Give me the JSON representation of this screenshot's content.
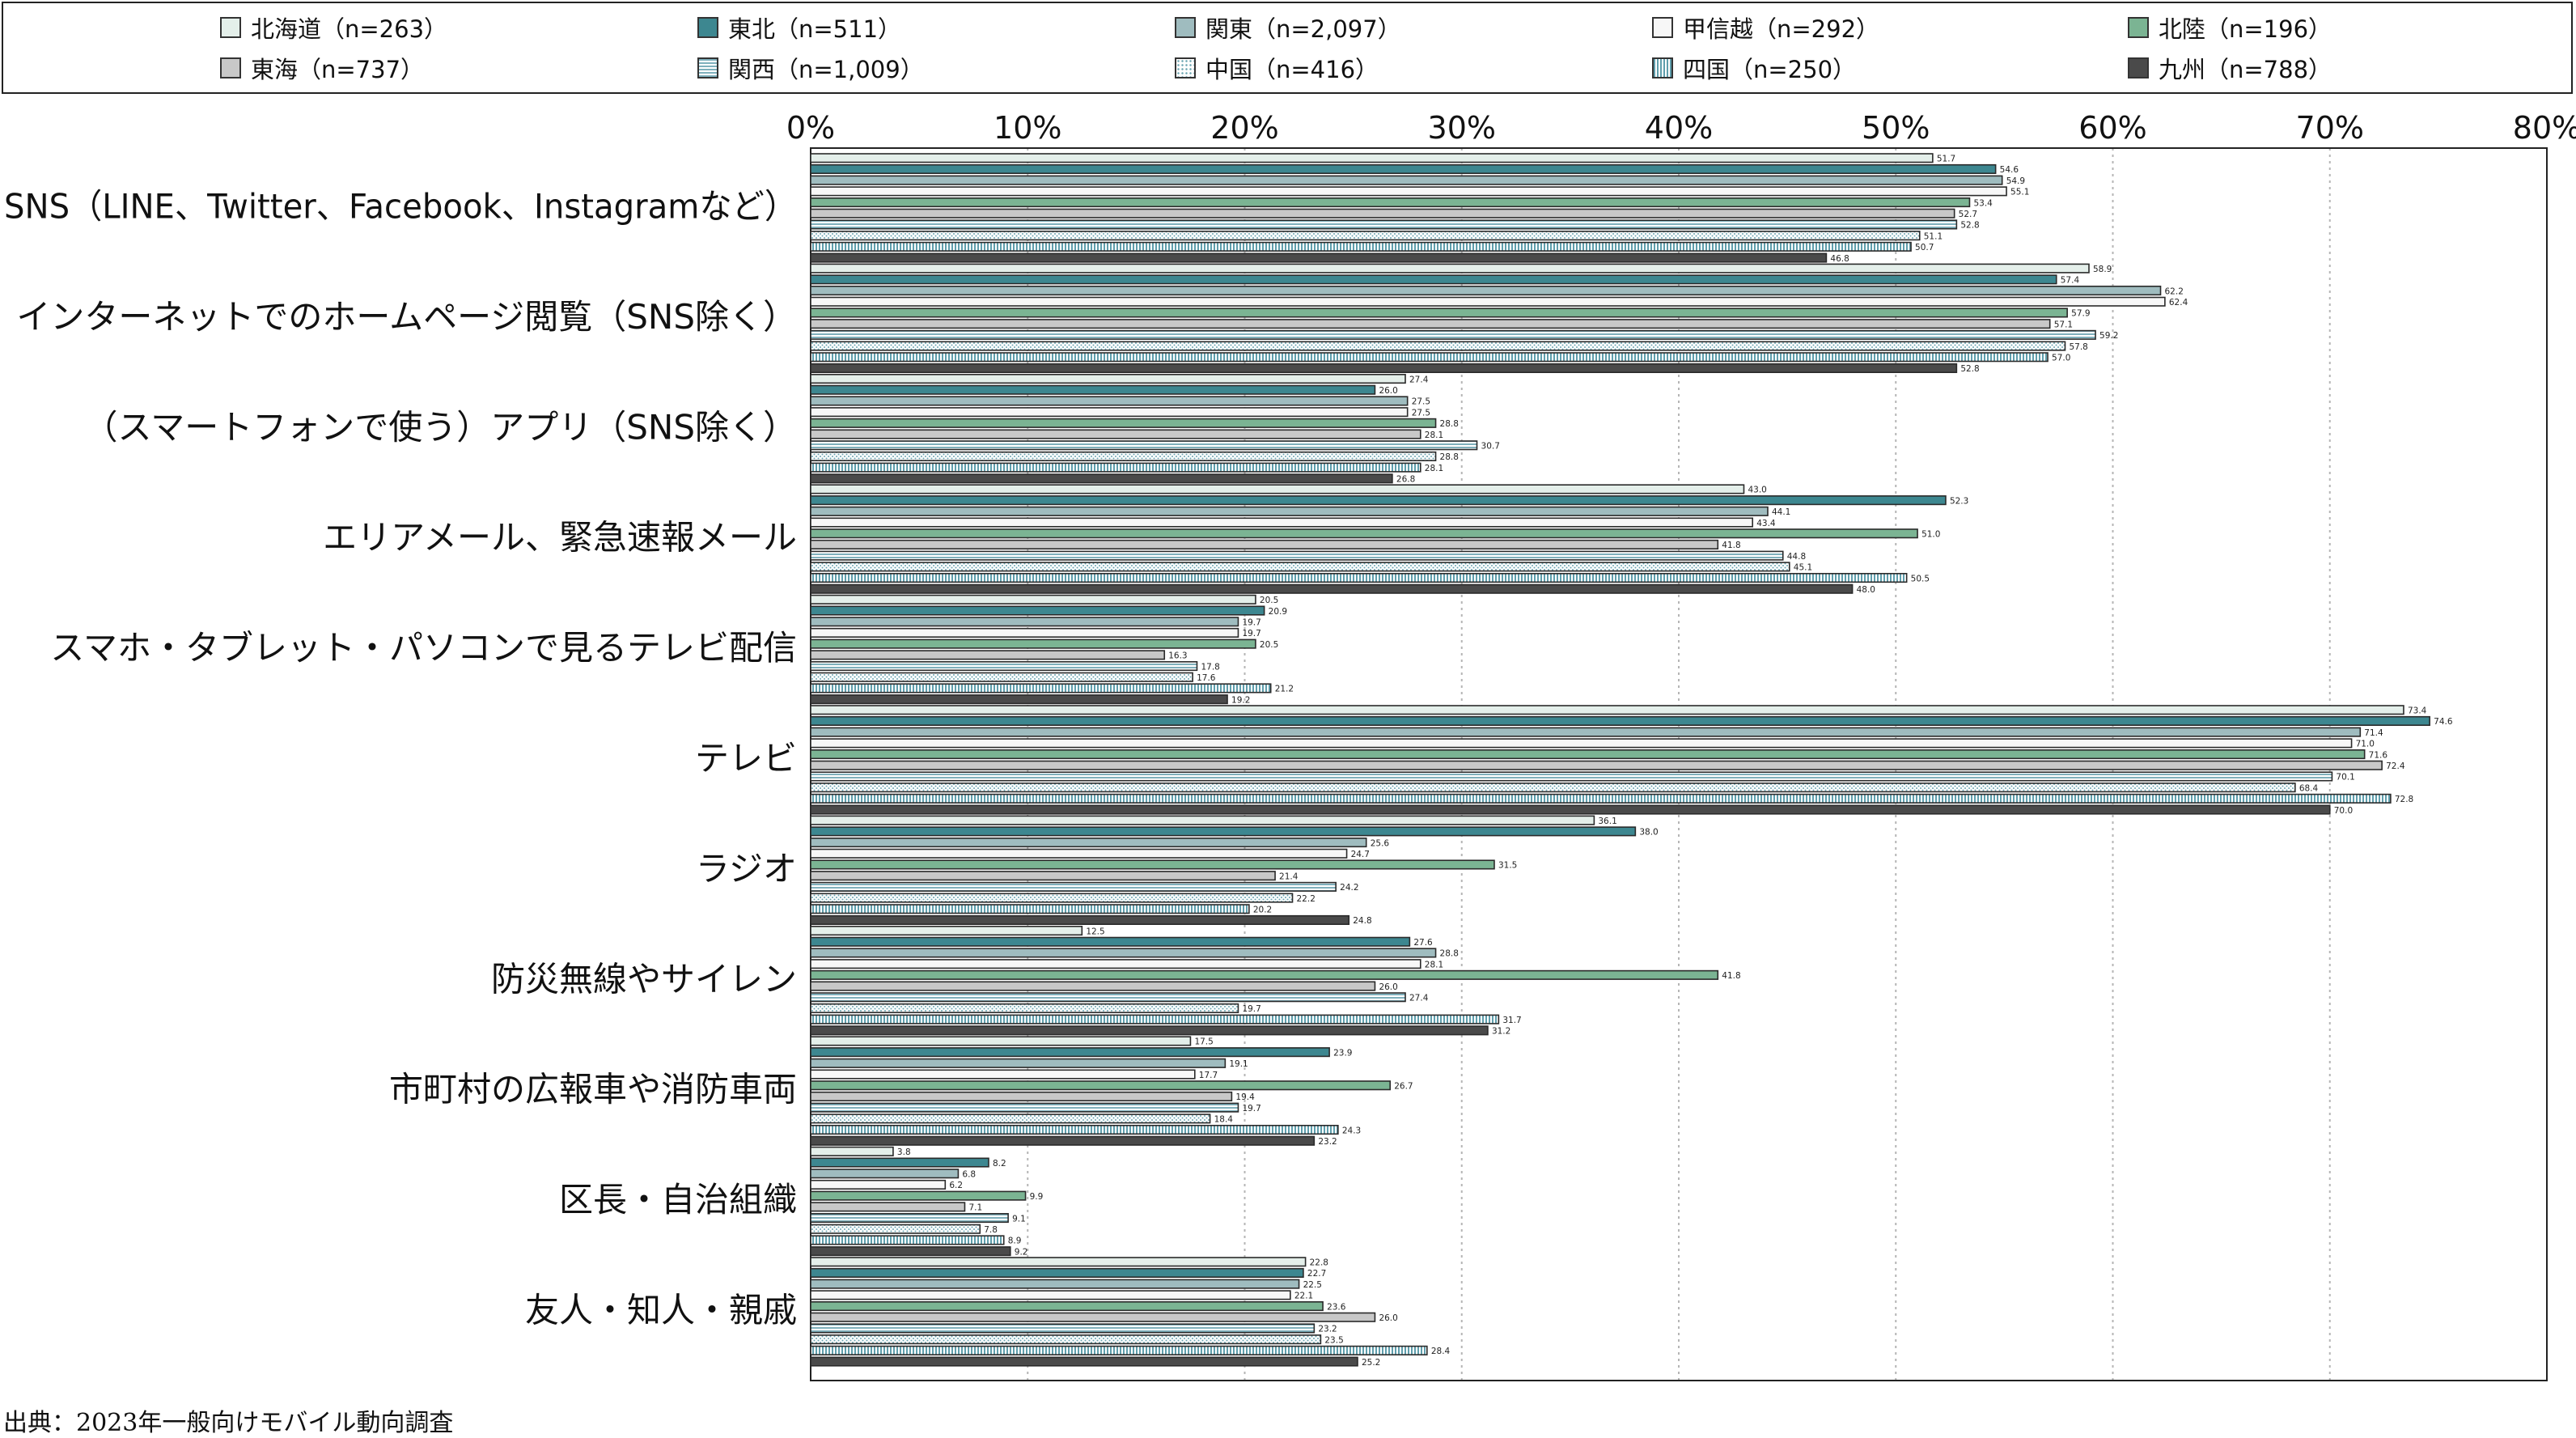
{
  "series_styles": [
    {
      "fill": "#e4efea",
      "pattern": "none"
    },
    {
      "fill": "#3d8790",
      "pattern": "none"
    },
    {
      "fill": "#9fbcbf",
      "pattern": "none"
    },
    {
      "fill": "#f7f7f7",
      "pattern": "none"
    },
    {
      "fill": "#7bb493",
      "pattern": "none"
    },
    {
      "fill": "#c8c8c8",
      "pattern": "none"
    },
    {
      "fill": "#cfe0e4",
      "pattern": "hstripe"
    },
    {
      "fill": "#ffffff",
      "pattern": "dots"
    },
    {
      "fill": "#a7cfd8",
      "pattern": "vstripe"
    },
    {
      "fill": "#4a4a4a",
      "pattern": "none"
    }
  ],
  "chart_data": {
    "type": "bar",
    "orientation": "horizontal",
    "xlim": [
      0,
      80
    ],
    "x_ticks": [
      "0%",
      "10%",
      "20%",
      "30%",
      "40%",
      "50%",
      "60%",
      "70%",
      "80%"
    ],
    "grid": true,
    "legend_position": "top",
    "categories": [
      "SNS（LINE、Twitter、Facebook、Instagramなど）",
      "インターネットでのホームページ閲覧（SNS除く）",
      "（スマートフォンで使う）アプリ（SNS除く）",
      "エリアメール、緊急速報メール",
      "スマホ・タブレット・パソコンで見るテレビ配信",
      "テレビ",
      "ラジオ",
      "防災無線やサイレン",
      "市町村の広報車や消防車両",
      "区長・自治組織",
      "友人・知人・親戚"
    ],
    "series": [
      {
        "name": "北海道（n=263）",
        "values": [
          51.7,
          58.9,
          27.4,
          43.0,
          20.5,
          73.4,
          36.1,
          12.5,
          17.5,
          3.8,
          22.8
        ]
      },
      {
        "name": "東北（n=511）",
        "values": [
          54.6,
          57.4,
          26.0,
          52.3,
          20.9,
          74.6,
          38.0,
          27.6,
          23.9,
          8.2,
          22.7
        ]
      },
      {
        "name": "関東（n=2,097）",
        "values": [
          54.9,
          62.2,
          27.5,
          44.1,
          19.7,
          71.4,
          25.6,
          28.8,
          19.1,
          6.8,
          22.5
        ]
      },
      {
        "name": "甲信越（n=292）",
        "values": [
          55.1,
          62.4,
          27.5,
          43.4,
          19.7,
          71.0,
          24.7,
          28.1,
          17.7,
          6.2,
          22.1
        ]
      },
      {
        "name": "北陸（n=196）",
        "values": [
          53.4,
          57.9,
          28.8,
          51.0,
          20.5,
          71.6,
          31.5,
          41.8,
          26.7,
          9.9,
          23.6
        ]
      },
      {
        "name": "東海（n=737）",
        "values": [
          52.7,
          57.1,
          28.1,
          41.8,
          16.3,
          72.4,
          21.4,
          26.0,
          19.4,
          7.1,
          26.0
        ]
      },
      {
        "name": "関西（n=1,009）",
        "values": [
          52.8,
          59.2,
          30.7,
          44.8,
          17.8,
          70.1,
          24.2,
          27.4,
          19.7,
          9.1,
          23.2
        ]
      },
      {
        "name": "中国（n=416）",
        "values": [
          51.1,
          57.8,
          28.8,
          45.1,
          17.6,
          68.4,
          22.2,
          19.7,
          18.4,
          7.8,
          23.5
        ]
      },
      {
        "name": "四国（n=250）",
        "values": [
          50.7,
          57.0,
          28.1,
          50.5,
          21.2,
          72.8,
          20.2,
          31.7,
          24.3,
          8.9,
          28.4
        ]
      },
      {
        "name": "九州（n=788）",
        "values": [
          46.8,
          52.8,
          26.8,
          48.0,
          19.2,
          70.0,
          24.8,
          31.2,
          23.2,
          9.2,
          25.2
        ]
      }
    ]
  },
  "source_note": "出典：2023年一般向けモバイル動向調査"
}
